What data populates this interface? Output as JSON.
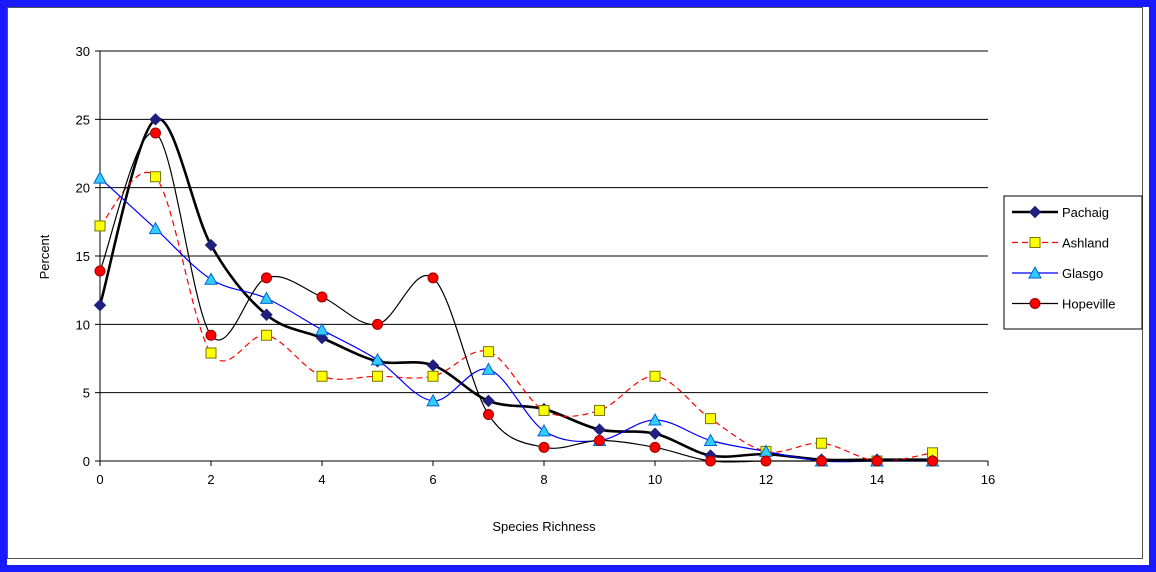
{
  "chart_data": {
    "type": "line",
    "title": "",
    "xlabel": "Species Richness",
    "ylabel": "Percent",
    "xlim": [
      0,
      16
    ],
    "ylim": [
      0,
      30
    ],
    "x_ticks": [
      "0",
      "2",
      "4",
      "6",
      "8",
      "10",
      "12",
      "14",
      "16"
    ],
    "y_ticks": [
      "0",
      "5",
      "10",
      "15",
      "20",
      "25",
      "30"
    ],
    "grid": "horizontal",
    "legend_position": "right",
    "x": [
      0,
      1,
      2,
      3,
      4,
      5,
      6,
      7,
      8,
      9,
      10,
      11,
      12,
      13,
      14,
      15
    ],
    "series": [
      {
        "name": "Pachaig",
        "color": "#000000",
        "marker": "diamond",
        "marker_color": "#1f1f80",
        "line_style": "solid",
        "values": [
          11.4,
          25.0,
          15.8,
          10.7,
          9.0,
          7.3,
          7.0,
          4.4,
          3.8,
          2.3,
          2.0,
          0.4,
          0.5,
          0.1,
          0.1,
          0.1
        ]
      },
      {
        "name": "Ashland",
        "color": "#ff0000",
        "marker": "square",
        "marker_color": "#ffff00",
        "line_style": "dashed",
        "values": [
          17.2,
          20.8,
          7.9,
          9.2,
          6.2,
          6.2,
          6.2,
          8.0,
          3.7,
          3.7,
          6.2,
          3.1,
          0.7,
          1.3,
          0.0,
          0.6
        ]
      },
      {
        "name": "Glasgo",
        "color": "#0000ff",
        "marker": "triangle",
        "marker_color": "#33ccff",
        "line_style": "solid",
        "values": [
          20.7,
          17.0,
          13.3,
          11.9,
          9.6,
          7.4,
          4.4,
          6.7,
          2.2,
          1.5,
          3.0,
          1.5,
          0.7,
          0.0,
          0.0,
          0.0
        ]
      },
      {
        "name": "Hopeville",
        "color": "#000000",
        "marker": "circle",
        "marker_color": "#ff0000",
        "line_style": "solid",
        "values": [
          13.9,
          24.0,
          9.2,
          13.4,
          12.0,
          10.0,
          13.4,
          3.4,
          1.0,
          1.5,
          1.0,
          0.0,
          0.0,
          0.0,
          0.0,
          0.0
        ]
      }
    ]
  }
}
